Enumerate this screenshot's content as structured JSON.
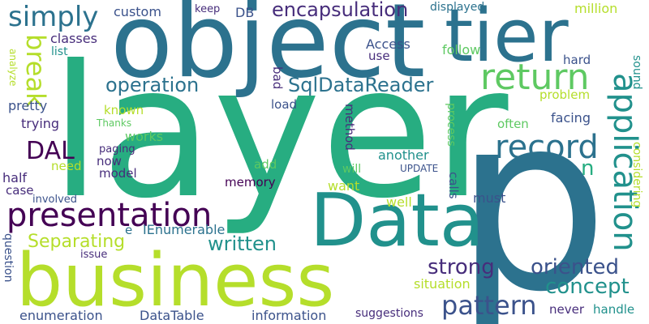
{
  "cloud": {
    "background": "#ffffff",
    "palette": [
      "#440154",
      "#3b528b",
      "#21918c",
      "#5ec962",
      "#b5de2b",
      "#2c728e",
      "#27ad81",
      "#472d7b"
    ],
    "words": [
      {
        "text": "layer",
        "color": "#27ad81"
      },
      {
        "text": "p",
        "color": "#2c728e"
      },
      {
        "text": "object",
        "color": "#2c728e"
      },
      {
        "text": "tier",
        "color": "#2c728e"
      },
      {
        "text": "Data",
        "color": "#21918c"
      },
      {
        "text": "business",
        "color": "#b5de2b"
      },
      {
        "text": "presentation",
        "color": "#440154"
      },
      {
        "text": "return",
        "color": "#5ec962"
      },
      {
        "text": "application",
        "color": "#21918c"
      },
      {
        "text": "record",
        "color": "#2c728e"
      },
      {
        "text": "SqlDataReader",
        "color": "#2c728e"
      },
      {
        "text": "operation",
        "color": "#2c728e"
      },
      {
        "text": "simply",
        "color": "#2c728e"
      },
      {
        "text": "encapsulation",
        "color": "#472d7b"
      },
      {
        "text": "break",
        "color": "#b5de2b"
      },
      {
        "text": "DAL",
        "color": "#440154"
      },
      {
        "text": "pattern",
        "color": "#3b528b"
      },
      {
        "text": "strong",
        "color": "#472d7b"
      },
      {
        "text": "concept",
        "color": "#21918c"
      },
      {
        "text": "oriented",
        "color": "#3b528b"
      },
      {
        "text": "written",
        "color": "#21918c"
      },
      {
        "text": "Separating",
        "color": "#b5de2b"
      },
      {
        "text": "n",
        "color": "#27ad81"
      },
      {
        "text": "custom",
        "color": "#3b528b"
      },
      {
        "text": "keep",
        "color": "#472d7b"
      },
      {
        "text": "DB",
        "color": "#3b528b"
      },
      {
        "text": "displayed",
        "color": "#2c728e"
      },
      {
        "text": "million",
        "color": "#b5de2b"
      },
      {
        "text": "classes",
        "color": "#472d7b"
      },
      {
        "text": "list",
        "color": "#21918c"
      },
      {
        "text": "Access",
        "color": "#3b528b"
      },
      {
        "text": "use",
        "color": "#472d7b"
      },
      {
        "text": "follow",
        "color": "#5ec962"
      },
      {
        "text": "hard",
        "color": "#3b528b"
      },
      {
        "text": "sound",
        "color": "#21918c"
      },
      {
        "text": "problem",
        "color": "#b5de2b"
      },
      {
        "text": "pretty",
        "color": "#3b528b"
      },
      {
        "text": "trying",
        "color": "#472d7b"
      },
      {
        "text": "known",
        "color": "#b5de2b"
      },
      {
        "text": "Thanks",
        "color": "#5ec962"
      },
      {
        "text": "load",
        "color": "#3b528b"
      },
      {
        "text": "bad",
        "color": "#472d7b"
      },
      {
        "text": "method",
        "color": "#472d7b"
      },
      {
        "text": "process",
        "color": "#5ec962"
      },
      {
        "text": "facing",
        "color": "#3b528b"
      },
      {
        "text": "often",
        "color": "#5ec962"
      },
      {
        "text": "considering",
        "color": "#b5de2b"
      },
      {
        "text": "works",
        "color": "#5ec962"
      },
      {
        "text": "paging",
        "color": "#472d7b"
      },
      {
        "text": "now",
        "color": "#472d7b"
      },
      {
        "text": "model",
        "color": "#472d7b"
      },
      {
        "text": "need",
        "color": "#b5de2b"
      },
      {
        "text": "half",
        "color": "#472d7b"
      },
      {
        "text": "case",
        "color": "#472d7b"
      },
      {
        "text": "involved",
        "color": "#3b528b"
      },
      {
        "text": "memory",
        "color": "#440154"
      },
      {
        "text": "add",
        "color": "#5ec962"
      },
      {
        "text": "another",
        "color": "#21918c"
      },
      {
        "text": "will",
        "color": "#5ec962"
      },
      {
        "text": "UPDATE",
        "color": "#3b528b"
      },
      {
        "text": "calls",
        "color": "#3b528b"
      },
      {
        "text": "want",
        "color": "#b5de2b"
      },
      {
        "text": "well",
        "color": "#b5de2b"
      },
      {
        "text": "must",
        "color": "#3b528b"
      },
      {
        "text": "e",
        "color": "#2c728e"
      },
      {
        "text": "IEnumerable",
        "color": "#2c728e"
      },
      {
        "text": "issue",
        "color": "#472d7b"
      },
      {
        "text": "question",
        "color": "#3b528b"
      },
      {
        "text": "situation",
        "color": "#b5de2b"
      },
      {
        "text": "enumeration",
        "color": "#3b528b"
      },
      {
        "text": "DataTable",
        "color": "#3b528b"
      },
      {
        "text": "information",
        "color": "#3b528b"
      },
      {
        "text": "suggestions",
        "color": "#472d7b"
      },
      {
        "text": "never",
        "color": "#472d7b"
      },
      {
        "text": "handle",
        "color": "#21918c"
      },
      {
        "text": "analyze",
        "color": "#b5de2b"
      }
    ]
  }
}
